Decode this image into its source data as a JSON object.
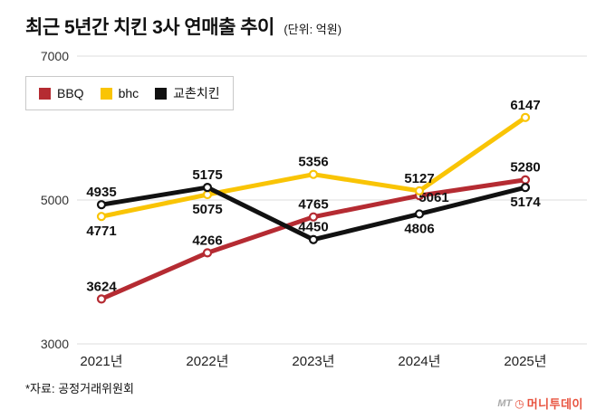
{
  "header": {
    "title": "최근 5년간 치킨 3사 연매출 추이",
    "unit": "(단위: 억원)"
  },
  "footnote": "*자료: 공정거래위원회",
  "watermark": {
    "prefix": "MT",
    "brand": "머니투데이"
  },
  "chart_data": {
    "type": "line",
    "title": "최근 5년간 치킨 3사 연매출 추이",
    "unit_label": "(단위: 억원)",
    "categories": [
      "2021년",
      "2022년",
      "2023년",
      "2024년",
      "2025년"
    ],
    "series": [
      {
        "name": "BBQ",
        "color": "#b52b32",
        "values": [
          3624,
          4266,
          4765,
          5061,
          5280
        ],
        "label_pos": [
          "above",
          "above",
          "above",
          "beside",
          "above"
        ],
        "label_dx": [
          0,
          0,
          0,
          16,
          0
        ]
      },
      {
        "name": "bhc",
        "color": "#f9c405",
        "values": [
          4771,
          5075,
          5356,
          5127,
          6147
        ],
        "label_pos": [
          "below",
          "below",
          "above",
          "above",
          "above"
        ],
        "label_dx": [
          0,
          0,
          0,
          0,
          0
        ]
      },
      {
        "name": "교촌치킨",
        "color": "#111111",
        "values": [
          4935,
          5175,
          4450,
          4806,
          5174
        ],
        "label_pos": [
          "above",
          "above",
          "above",
          "below",
          "below"
        ],
        "label_dx": [
          0,
          0,
          0,
          0,
          0
        ]
      }
    ],
    "yticks": [
      7000,
      5000,
      3000
    ],
    "ylim": [
      3000,
      7000
    ],
    "grid": "horizontal",
    "legend_position": "top-left"
  }
}
